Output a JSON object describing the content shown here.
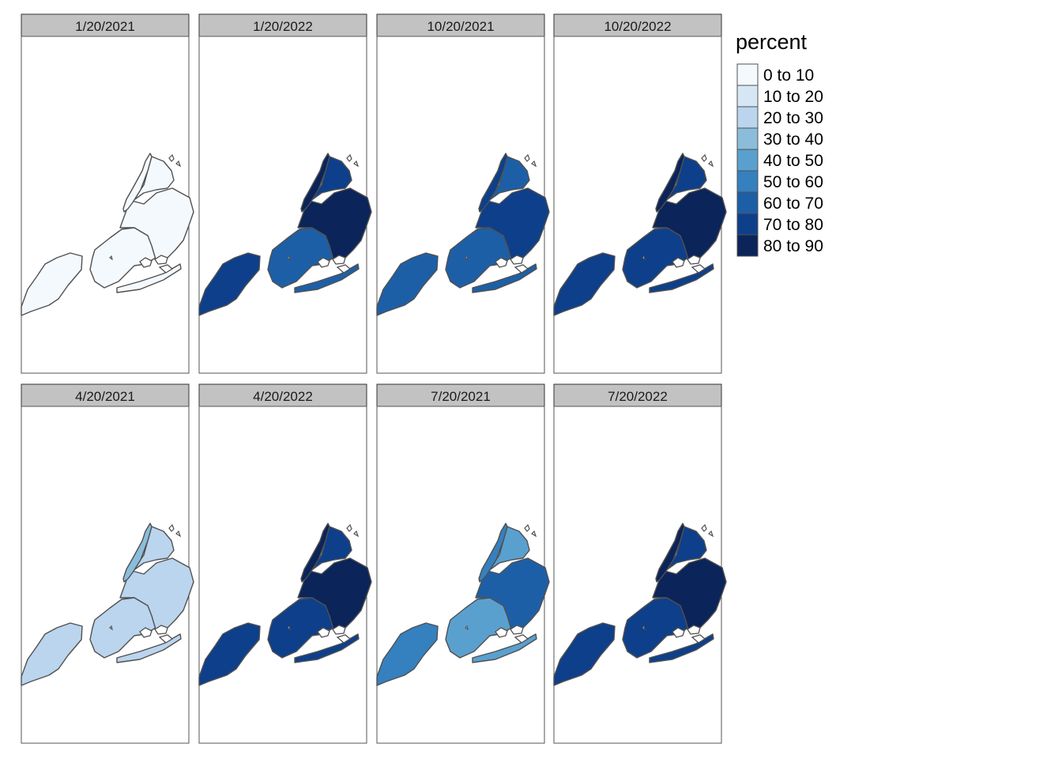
{
  "legend": {
    "title": "percent",
    "classes": [
      {
        "label": "0 to 10",
        "color": "#f4f9fe"
      },
      {
        "label": "10 to 20",
        "color": "#d6e6f5"
      },
      {
        "label": "20 to 30",
        "color": "#bad5ed"
      },
      {
        "label": "30 to 40",
        "color": "#8bbddb"
      },
      {
        "label": "40 to 50",
        "color": "#5aa0cf"
      },
      {
        "label": "50 to 60",
        "color": "#3580bf"
      },
      {
        "label": "60 to 70",
        "color": "#1d5fa7"
      },
      {
        "label": "70 to 80",
        "color": "#0e3f8a"
      },
      {
        "label": "80 to 90",
        "color": "#0b2459"
      }
    ]
  },
  "panels": [
    {
      "title": "1/20/2021",
      "classes": {
        "bronx": 0,
        "manhattan": 0,
        "queens": 0,
        "brooklyn": 0,
        "staten_island": 0
      }
    },
    {
      "title": "1/20/2022",
      "classes": {
        "bronx": 7,
        "manhattan": 8,
        "queens": 8,
        "brooklyn": 6,
        "staten_island": 7
      }
    },
    {
      "title": "10/20/2021",
      "classes": {
        "bronx": 6,
        "manhattan": 7,
        "queens": 7,
        "brooklyn": 6,
        "staten_island": 6
      }
    },
    {
      "title": "10/20/2022",
      "classes": {
        "bronx": 7,
        "manhattan": 8,
        "queens": 8,
        "brooklyn": 7,
        "staten_island": 7
      }
    },
    {
      "title": "4/20/2021",
      "classes": {
        "bronx": 2,
        "manhattan": 3,
        "queens": 2,
        "brooklyn": 2,
        "staten_island": 2
      }
    },
    {
      "title": "4/20/2022",
      "classes": {
        "bronx": 7,
        "manhattan": 8,
        "queens": 8,
        "brooklyn": 7,
        "staten_island": 7
      }
    },
    {
      "title": "7/20/2021",
      "classes": {
        "bronx": 4,
        "manhattan": 5,
        "queens": 6,
        "brooklyn": 4,
        "staten_island": 5
      }
    },
    {
      "title": "7/20/2022",
      "classes": {
        "bronx": 7,
        "manhattan": 8,
        "queens": 8,
        "brooklyn": 7,
        "staten_island": 7
      }
    }
  ]
}
